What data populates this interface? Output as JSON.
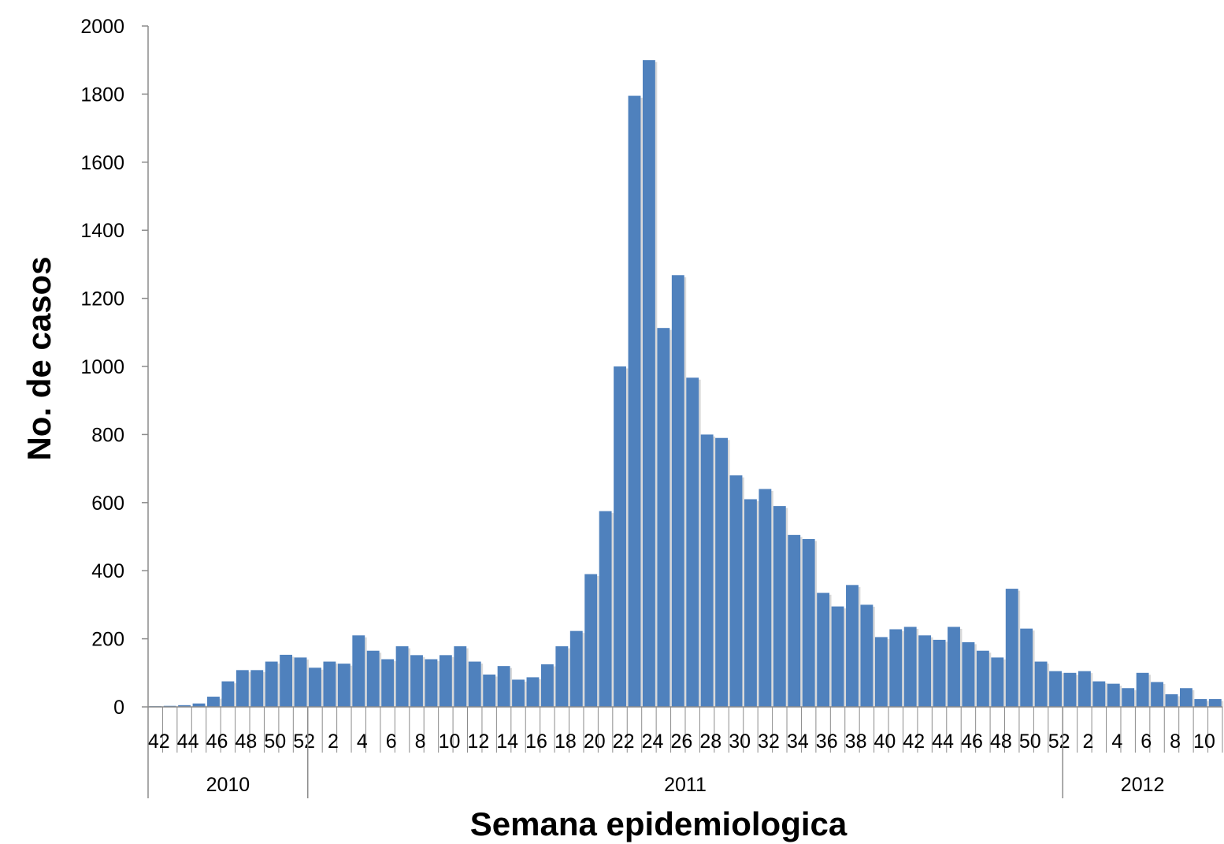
{
  "chart_data": {
    "type": "bar",
    "title": "",
    "xlabel": "Semana epidemiologica",
    "ylabel": "No. de casos",
    "ylim": [
      0,
      2000
    ],
    "yticks": [
      0,
      200,
      400,
      600,
      800,
      1000,
      1200,
      1400,
      1600,
      1800,
      2000
    ],
    "grid": false,
    "legend": "none",
    "bar_color": "#4f81bd",
    "week_tick_labels": [
      "42",
      "44",
      "46",
      "48",
      "50",
      "52",
      "2",
      "4",
      "6",
      "8",
      "10",
      "12",
      "14",
      "16",
      "18",
      "20",
      "22",
      "24",
      "26",
      "28",
      "30",
      "32",
      "34",
      "36",
      "38",
      "40",
      "42",
      "44",
      "46",
      "48",
      "50",
      "52",
      "2",
      "4",
      "6",
      "8",
      "10"
    ],
    "years": [
      {
        "label": "2010",
        "first_week": 42,
        "last_week": 52
      },
      {
        "label": "2011",
        "first_week": 1,
        "last_week": 52
      },
      {
        "label": "2012",
        "first_week": 1,
        "last_week": 11
      }
    ],
    "categories": [
      "42",
      "43",
      "44",
      "45",
      "46",
      "47",
      "48",
      "49",
      "50",
      "51",
      "52",
      "1",
      "2",
      "3",
      "4",
      "5",
      "6",
      "7",
      "8",
      "9",
      "10",
      "11",
      "12",
      "13",
      "14",
      "15",
      "16",
      "17",
      "18",
      "19",
      "20",
      "21",
      "22",
      "23",
      "24",
      "25",
      "26",
      "27",
      "28",
      "29",
      "30",
      "31",
      "32",
      "33",
      "34",
      "35",
      "36",
      "37",
      "38",
      "39",
      "40",
      "41",
      "42",
      "43",
      "44",
      "45",
      "46",
      "47",
      "48",
      "49",
      "50",
      "51",
      "52",
      "1",
      "2",
      "3",
      "4",
      "5",
      "6",
      "7",
      "8",
      "9",
      "10",
      "11"
    ],
    "values": [
      2,
      3,
      5,
      10,
      30,
      75,
      108,
      108,
      133,
      153,
      145,
      115,
      133,
      127,
      210,
      165,
      140,
      178,
      152,
      140,
      152,
      178,
      133,
      95,
      120,
      80,
      87,
      125,
      178,
      223,
      390,
      575,
      1000,
      1795,
      1900,
      1113,
      1268,
      967,
      800,
      790,
      680,
      610,
      640,
      590,
      505,
      493,
      335,
      295,
      358,
      300,
      205,
      228,
      235,
      210,
      197,
      235,
      190,
      165,
      145,
      347,
      230,
      133,
      105,
      100,
      105,
      75,
      68,
      55,
      100,
      73,
      37,
      55,
      23,
      23
    ]
  }
}
